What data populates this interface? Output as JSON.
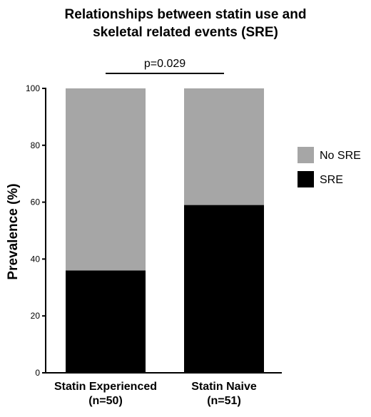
{
  "chart_data": {
    "type": "bar",
    "stacked": true,
    "title_lines": [
      "Relationships between statin use and",
      "skeletal related events (SRE)"
    ],
    "annotation": "p=0.029",
    "ylabel": "Prevalence (%)",
    "xlabel": "",
    "ylim": [
      0,
      100
    ],
    "yticks": [
      0,
      20,
      40,
      60,
      80,
      100
    ],
    "categories": [
      [
        "Statin Experienced",
        "(n=50)"
      ],
      [
        "Statin Naive",
        "(n=51)"
      ]
    ],
    "series": [
      {
        "name": "SRE",
        "values": [
          36,
          59
        ],
        "color": "#000000"
      },
      {
        "name": "No SRE",
        "values": [
          64,
          41
        ],
        "color": "#a6a6a6"
      }
    ],
    "legend": [
      "No SRE",
      "SRE"
    ],
    "legend_position": "right",
    "grid": false
  }
}
